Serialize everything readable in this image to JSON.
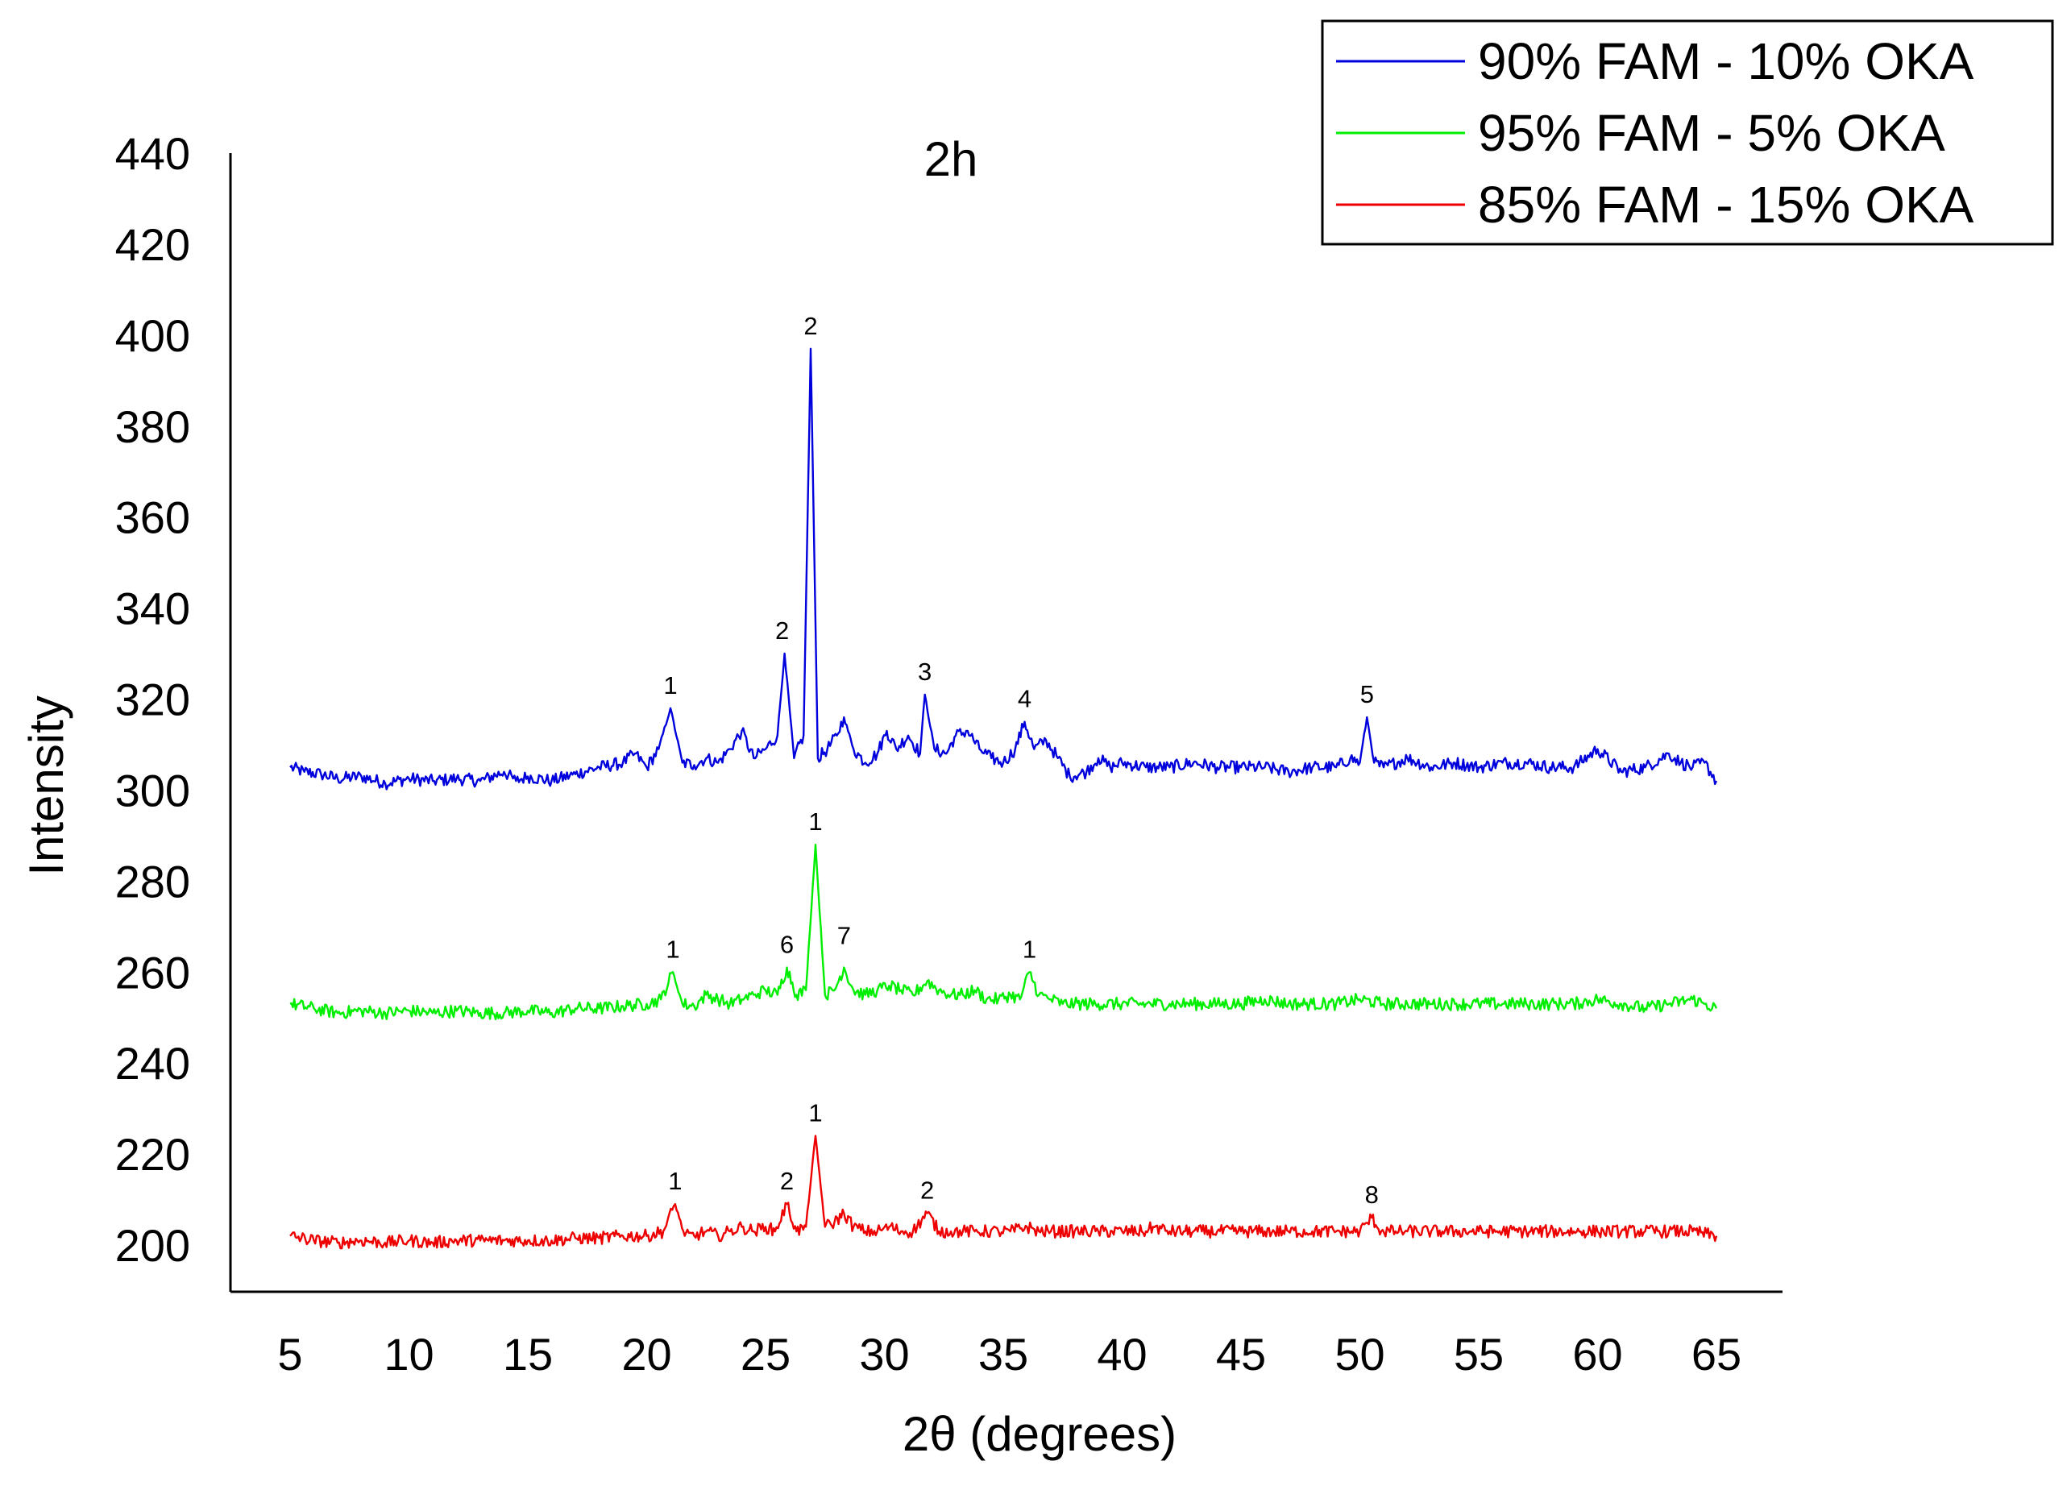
{
  "chart_data": {
    "type": "line",
    "title": "2h",
    "xlabel": "2θ (degrees)",
    "ylabel": "Intensity",
    "xlim": [
      5,
      65
    ],
    "ylim": [
      200,
      440
    ],
    "xticks": [
      5,
      10,
      15,
      20,
      25,
      30,
      35,
      40,
      45,
      50,
      55,
      60,
      65
    ],
    "yticks": [
      200,
      220,
      240,
      260,
      280,
      300,
      320,
      340,
      360,
      380,
      400,
      420,
      440
    ],
    "grid": false,
    "legend_position": "top-right",
    "series": [
      {
        "name": "90% FAM - 10% OKA",
        "color": "#0000dd",
        "baseline": 303,
        "points": [
          [
            5,
            305
          ],
          [
            5.6,
            304
          ],
          [
            6.3,
            303.5
          ],
          [
            7,
            302.5
          ],
          [
            8,
            303
          ],
          [
            9,
            301.5
          ],
          [
            10,
            302.5
          ],
          [
            11,
            302
          ],
          [
            12,
            302.5
          ],
          [
            13,
            302
          ],
          [
            14,
            304
          ],
          [
            14.5,
            302
          ],
          [
            15,
            303
          ],
          [
            16,
            302
          ],
          [
            17,
            303.5
          ],
          [
            18,
            305
          ],
          [
            19,
            306
          ],
          [
            19.5,
            308
          ],
          [
            20,
            305
          ],
          [
            20.5,
            309
          ],
          [
            21,
            318
          ],
          [
            21.5,
            306
          ],
          [
            22,
            305.5
          ],
          [
            22.5,
            307
          ],
          [
            23,
            306
          ],
          [
            23.5,
            309
          ],
          [
            24,
            313
          ],
          [
            24.5,
            307
          ],
          [
            25,
            309
          ],
          [
            25.5,
            312
          ],
          [
            25.8,
            330
          ],
          [
            26.2,
            307
          ],
          [
            26.6,
            312
          ],
          [
            26.9,
            397
          ],
          [
            27.2,
            307
          ],
          [
            27.6,
            309
          ],
          [
            28,
            312
          ],
          [
            28.3,
            316
          ],
          [
            28.7,
            309
          ],
          [
            29.2,
            306
          ],
          [
            29.7,
            308
          ],
          [
            30.1,
            313
          ],
          [
            30.5,
            309
          ],
          [
            31,
            312
          ],
          [
            31.5,
            308
          ],
          [
            31.7,
            321
          ],
          [
            32.1,
            309
          ],
          [
            32.6,
            308
          ],
          [
            33,
            312
          ],
          [
            33.5,
            313
          ],
          [
            34,
            309
          ],
          [
            34.5,
            307
          ],
          [
            35,
            306
          ],
          [
            35.5,
            309
          ],
          [
            35.9,
            315
          ],
          [
            36.3,
            309
          ],
          [
            36.8,
            311
          ],
          [
            37.3,
            307
          ],
          [
            37.8,
            303
          ],
          [
            38.5,
            304
          ],
          [
            39,
            307
          ],
          [
            39.5,
            305
          ],
          [
            40,
            306
          ],
          [
            41,
            305
          ],
          [
            42,
            305
          ],
          [
            43,
            306
          ],
          [
            44,
            305
          ],
          [
            45,
            305
          ],
          [
            46,
            305
          ],
          [
            47,
            304
          ],
          [
            48,
            305
          ],
          [
            49,
            305
          ],
          [
            49.6,
            307
          ],
          [
            50,
            306
          ],
          [
            50.3,
            316
          ],
          [
            50.6,
            306
          ],
          [
            51,
            305
          ],
          [
            52,
            307
          ],
          [
            53,
            305
          ],
          [
            54,
            306
          ],
          [
            55,
            305
          ],
          [
            56,
            306
          ],
          [
            57,
            306
          ],
          [
            58,
            305
          ],
          [
            59,
            305
          ],
          [
            60,
            309
          ],
          [
            61,
            304
          ],
          [
            62,
            305
          ],
          [
            63,
            308
          ],
          [
            63.5,
            306
          ],
          [
            64,
            305
          ],
          [
            64.5,
            306
          ],
          [
            65,
            302
          ]
        ]
      },
      {
        "name": "95% FAM - 5% OKA",
        "color": "#00ee00",
        "baseline": 252,
        "points": [
          [
            5,
            253
          ],
          [
            6,
            252
          ],
          [
            7,
            251
          ],
          [
            8,
            251.5
          ],
          [
            9,
            251
          ],
          [
            10,
            251.5
          ],
          [
            11,
            251
          ],
          [
            12,
            251.5
          ],
          [
            13,
            251
          ],
          [
            14,
            251
          ],
          [
            15,
            251.5
          ],
          [
            16,
            251
          ],
          [
            17,
            252
          ],
          [
            18,
            252
          ],
          [
            19,
            252.5
          ],
          [
            20,
            253
          ],
          [
            20.6,
            254
          ],
          [
            21.1,
            260
          ],
          [
            21.5,
            253
          ],
          [
            22,
            252.5
          ],
          [
            22.5,
            255
          ],
          [
            23,
            254
          ],
          [
            23.5,
            253
          ],
          [
            24,
            254
          ],
          [
            24.5,
            255
          ],
          [
            25,
            256
          ],
          [
            25.5,
            255
          ],
          [
            25.9,
            261
          ],
          [
            26.3,
            255
          ],
          [
            26.7,
            256
          ],
          [
            27.1,
            288
          ],
          [
            27.5,
            255
          ],
          [
            27.9,
            256
          ],
          [
            28.3,
            261
          ],
          [
            28.7,
            256
          ],
          [
            29.2,
            255
          ],
          [
            29.7,
            256
          ],
          [
            30.2,
            257
          ],
          [
            30.7,
            256
          ],
          [
            31.2,
            255
          ],
          [
            31.8,
            258
          ],
          [
            32.3,
            256
          ],
          [
            32.8,
            255
          ],
          [
            33.3,
            255
          ],
          [
            33.8,
            256
          ],
          [
            34.3,
            254
          ],
          [
            34.8,
            254
          ],
          [
            35.3,
            255
          ],
          [
            35.7,
            254
          ],
          [
            36.1,
            260
          ],
          [
            36.5,
            255
          ],
          [
            37,
            254
          ],
          [
            37.5,
            253
          ],
          [
            38,
            253
          ],
          [
            39,
            253
          ],
          [
            40,
            253
          ],
          [
            41,
            253
          ],
          [
            42,
            253
          ],
          [
            43,
            253
          ],
          [
            44,
            253
          ],
          [
            45,
            253
          ],
          [
            46,
            254
          ],
          [
            47,
            253
          ],
          [
            48,
            253
          ],
          [
            49,
            253
          ],
          [
            50,
            254
          ],
          [
            51,
            253
          ],
          [
            52,
            253
          ],
          [
            53,
            253
          ],
          [
            54,
            253
          ],
          [
            55,
            253
          ],
          [
            56,
            253
          ],
          [
            57,
            253
          ],
          [
            58,
            253
          ],
          [
            59,
            253
          ],
          [
            60,
            254
          ],
          [
            61,
            253
          ],
          [
            62,
            252
          ],
          [
            63,
            253
          ],
          [
            64,
            254
          ],
          [
            64.5,
            253
          ],
          [
            65,
            252
          ]
        ]
      },
      {
        "name": "85% FAM - 15% OKA",
        "color": "#ee0000",
        "baseline": 201,
        "points": [
          [
            5,
            202
          ],
          [
            6,
            201
          ],
          [
            7,
            200.5
          ],
          [
            8,
            201
          ],
          [
            9,
            200.5
          ],
          [
            10,
            201
          ],
          [
            11,
            200.5
          ],
          [
            12,
            201
          ],
          [
            13,
            201
          ],
          [
            14,
            201
          ],
          [
            15,
            201
          ],
          [
            16,
            201
          ],
          [
            17,
            201.5
          ],
          [
            18,
            201.5
          ],
          [
            19,
            202
          ],
          [
            20,
            202
          ],
          [
            20.7,
            203
          ],
          [
            21.2,
            209
          ],
          [
            21.6,
            202
          ],
          [
            22,
            202
          ],
          [
            22.5,
            203
          ],
          [
            23,
            202
          ],
          [
            23.5,
            203
          ],
          [
            24,
            204
          ],
          [
            24.5,
            203
          ],
          [
            25,
            204
          ],
          [
            25.4,
            203
          ],
          [
            25.9,
            209
          ],
          [
            26.3,
            203
          ],
          [
            26.7,
            204
          ],
          [
            27.1,
            224
          ],
          [
            27.5,
            204
          ],
          [
            27.9,
            205
          ],
          [
            28.3,
            207
          ],
          [
            28.7,
            204
          ],
          [
            29.2,
            203
          ],
          [
            29.7,
            203
          ],
          [
            30.2,
            204
          ],
          [
            30.7,
            203
          ],
          [
            31.2,
            203
          ],
          [
            31.8,
            207
          ],
          [
            32.3,
            203
          ],
          [
            32.8,
            203
          ],
          [
            33.3,
            203
          ],
          [
            33.8,
            203
          ],
          [
            34.3,
            203
          ],
          [
            34.8,
            203
          ],
          [
            35.3,
            203
          ],
          [
            36,
            204
          ],
          [
            36.5,
            203
          ],
          [
            37,
            203
          ],
          [
            38,
            203
          ],
          [
            39,
            203
          ],
          [
            40,
            203
          ],
          [
            41,
            203
          ],
          [
            41.3,
            204
          ],
          [
            42,
            203
          ],
          [
            43,
            203
          ],
          [
            44,
            203
          ],
          [
            45,
            203
          ],
          [
            46,
            203
          ],
          [
            47,
            203
          ],
          [
            48,
            203
          ],
          [
            49,
            203
          ],
          [
            50,
            203
          ],
          [
            50.5,
            206
          ],
          [
            50.9,
            203
          ],
          [
            51.5,
            203
          ],
          [
            52,
            203
          ],
          [
            53,
            203
          ],
          [
            54,
            203
          ],
          [
            55,
            203
          ],
          [
            56,
            203
          ],
          [
            57,
            203
          ],
          [
            58,
            203
          ],
          [
            59,
            203
          ],
          [
            60,
            203
          ],
          [
            61,
            203
          ],
          [
            62,
            203
          ],
          [
            63,
            203
          ],
          [
            64,
            203
          ],
          [
            65,
            202
          ]
        ]
      }
    ],
    "annotations": [
      {
        "text": "1",
        "x": 21.0,
        "y": 318,
        "series": 0
      },
      {
        "text": "2",
        "x": 25.7,
        "y": 330,
        "series": 0
      },
      {
        "text": "2",
        "x": 26.9,
        "y": 397,
        "series": 0
      },
      {
        "text": "3",
        "x": 31.7,
        "y": 321,
        "series": 0
      },
      {
        "text": "4",
        "x": 35.9,
        "y": 315,
        "series": 0
      },
      {
        "text": "5",
        "x": 50.3,
        "y": 316,
        "series": 0
      },
      {
        "text": "1",
        "x": 21.1,
        "y": 260,
        "series": 1
      },
      {
        "text": "6",
        "x": 25.9,
        "y": 261,
        "series": 1
      },
      {
        "text": "1",
        "x": 27.1,
        "y": 288,
        "series": 1
      },
      {
        "text": "7",
        "x": 28.3,
        "y": 263,
        "series": 1
      },
      {
        "text": "1",
        "x": 36.1,
        "y": 260,
        "series": 1
      },
      {
        "text": "1",
        "x": 21.2,
        "y": 209,
        "series": 2
      },
      {
        "text": "2",
        "x": 25.9,
        "y": 209,
        "series": 2
      },
      {
        "text": "1",
        "x": 27.1,
        "y": 224,
        "series": 2
      },
      {
        "text": "2",
        "x": 31.8,
        "y": 207,
        "series": 2
      },
      {
        "text": "8",
        "x": 50.5,
        "y": 206,
        "series": 2
      }
    ]
  }
}
